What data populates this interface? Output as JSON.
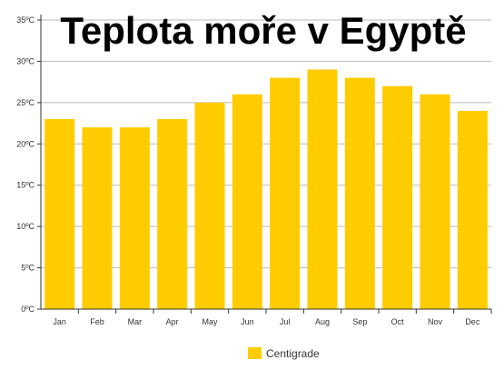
{
  "chart_data": {
    "type": "bar",
    "title": "Teplota moře v Egyptě",
    "categories": [
      "Jan",
      "Feb",
      "Mar",
      "Apr",
      "May",
      "Jun",
      "Jul",
      "Aug",
      "Sep",
      "Oct",
      "Nov",
      "Dec"
    ],
    "series": [
      {
        "name": "Centigrade",
        "values": [
          23,
          22,
          22,
          23,
          25,
          26,
          28,
          29,
          28,
          27,
          26,
          24
        ],
        "color": "#ffcc00"
      }
    ],
    "ylim": [
      0,
      35
    ],
    "yticks": [
      0,
      5,
      10,
      15,
      20,
      25,
      30,
      35
    ],
    "ytick_labels": [
      "0ºC",
      "5ºC",
      "10ºC",
      "15ºC",
      "20ºC",
      "25ºC",
      "30ºC",
      "35ºC"
    ],
    "grid": true,
    "legend": "bottom-center"
  }
}
